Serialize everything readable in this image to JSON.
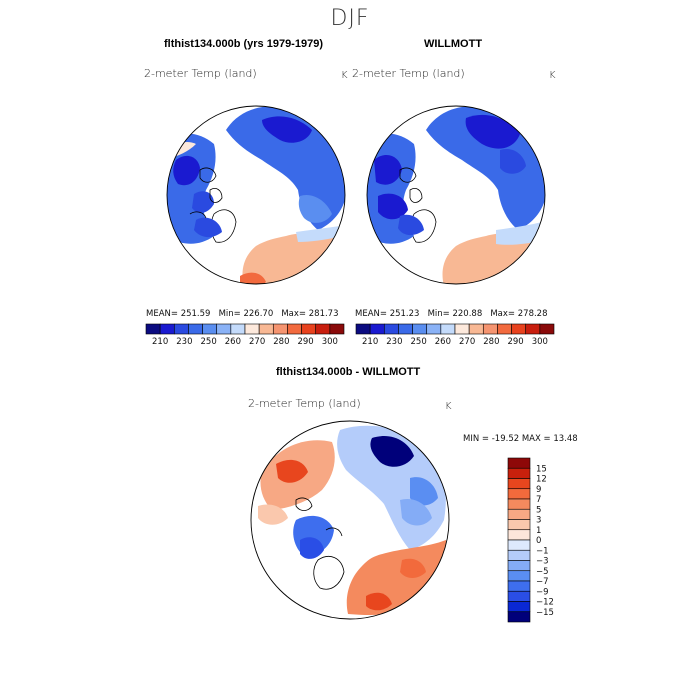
{
  "page": {
    "title": "DJF"
  },
  "panels": {
    "model": {
      "heading": "flthist134.000b (yrs 1979-1979)",
      "variable": "2-meter Temp (land)",
      "unit": "K",
      "mean_label": "MEAN=",
      "mean": "251.59",
      "min_label": "Min=",
      "min": "226.70",
      "max_label": "Max=",
      "max": "281.73"
    },
    "obs": {
      "heading": "WILLMOTT",
      "variable": "2-meter Temp (land)",
      "unit": "K",
      "mean_label": "MEAN=",
      "mean": "251.23",
      "min_label": "Min=",
      "min": "220.88",
      "max_label": "Max=",
      "max": "278.28"
    },
    "diff": {
      "heading": "flthist134.000b - WILLMOTT",
      "variable": "2-meter Temp (land)",
      "unit": "K",
      "min_label": "MIN =",
      "min": "-19.52",
      "max_label": "MAX =",
      "max": "13.48"
    }
  },
  "colors": {
    "abs_scale": [
      "#0b0b80",
      "#1a1ad0",
      "#2a4ae0",
      "#3a6ae8",
      "#5a8ef0",
      "#8ab2f6",
      "#c4dbfb",
      "#fde9dc",
      "#f8b894",
      "#f59470",
      "#f26a3e",
      "#e8421e",
      "#c81e0e",
      "#8a0a0a"
    ],
    "diff_scale": [
      "#00007a",
      "#0a28d4",
      "#2a4ee6",
      "#3e6eee",
      "#5a8ef2",
      "#84acf6",
      "#b4ccfa",
      "#dde9fd",
      "#fde6da",
      "#fac8ad",
      "#f7a884",
      "#f48a5e",
      "#f26a3c",
      "#e8461e",
      "#c8200c",
      "#8e0808"
    ]
  },
  "chart_data": [
    {
      "type": "heatmap",
      "title": "flthist134.000b (yrs 1979-1979)",
      "subtitle": "2-meter Temp (land)",
      "unit": "K",
      "projection": "north polar stereographic",
      "stats": {
        "mean": 251.59,
        "min": 226.7,
        "max": 281.73
      },
      "colorbar_ticks": [
        "210",
        "230",
        "250",
        "260",
        "270",
        "280",
        "290",
        "300"
      ]
    },
    {
      "type": "heatmap",
      "title": "WILLMOTT",
      "subtitle": "2-meter Temp (land)",
      "unit": "K",
      "projection": "north polar stereographic",
      "stats": {
        "mean": 251.23,
        "min": 220.88,
        "max": 278.28
      },
      "colorbar_ticks": [
        "210",
        "230",
        "250",
        "260",
        "270",
        "280",
        "290",
        "300"
      ]
    },
    {
      "type": "heatmap",
      "title": "flthist134.000b - WILLMOTT",
      "subtitle": "2-meter Temp (land)",
      "unit": "K",
      "projection": "north polar stereographic",
      "stats": {
        "min": -19.52,
        "max": 13.48
      },
      "colorbar_ticks": [
        "15",
        "12",
        "9",
        "7",
        "5",
        "3",
        "1",
        "0",
        "−1",
        "−3",
        "−5",
        "−7",
        "−9",
        "−12",
        "−15"
      ]
    }
  ]
}
